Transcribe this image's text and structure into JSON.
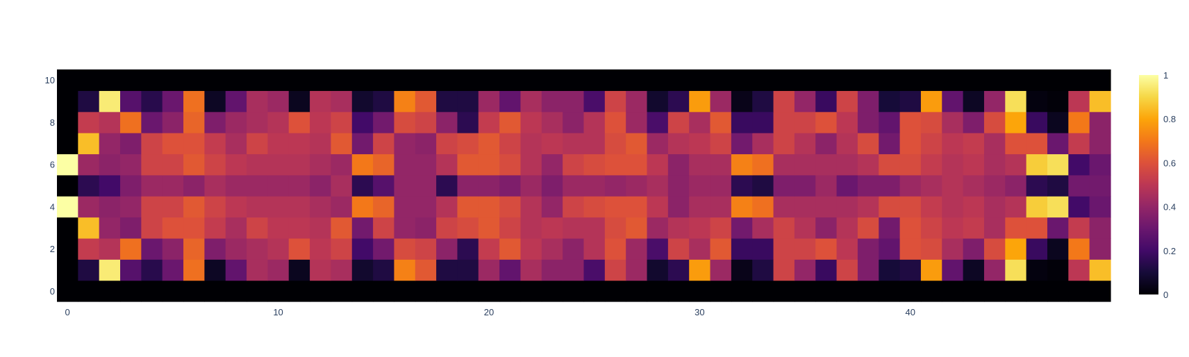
{
  "chart_data": {
    "type": "heatmap",
    "colorscale": "inferno",
    "x_range": [
      -0.5,
      49.5
    ],
    "y_range": [
      -0.5,
      10.5
    ],
    "x_ticks": [
      0,
      10,
      20,
      30,
      40
    ],
    "y_ticks": [
      0,
      2,
      4,
      6,
      8,
      10
    ],
    "colorbar": {
      "min": 0,
      "max": 1,
      "ticks": [
        0,
        0.2,
        0.4,
        0.6,
        0.8,
        1
      ]
    },
    "z": [
      [
        0,
        0,
        0,
        0,
        0,
        0,
        0,
        0,
        0,
        0,
        0,
        0,
        0,
        0,
        0,
        0,
        0,
        0,
        0,
        0,
        0,
        0,
        0,
        0,
        0,
        0,
        0,
        0,
        0,
        0,
        0,
        0,
        0,
        0,
        0,
        0,
        0,
        0,
        0,
        0,
        0,
        0,
        0,
        0,
        0,
        0,
        0,
        0,
        0,
        0
      ],
      [
        0,
        0.12,
        0.95,
        0.25,
        0.14,
        0.3,
        0.68,
        0.06,
        0.28,
        0.45,
        0.42,
        0.05,
        0.48,
        0.45,
        0.08,
        0.12,
        0.72,
        0.62,
        0.12,
        0.12,
        0.42,
        0.28,
        0.45,
        0.38,
        0.38,
        0.22,
        0.55,
        0.42,
        0.08,
        0.15,
        0.78,
        0.42,
        0.04,
        0.12,
        0.55,
        0.4,
        0.18,
        0.55,
        0.35,
        0.1,
        0.12,
        0.78,
        0.28,
        0.06,
        0.4,
        0.92,
        0.02,
        0.01,
        0.5,
        0.85
      ],
      [
        0,
        0.52,
        0.48,
        0.68,
        0.3,
        0.38,
        0.65,
        0.35,
        0.42,
        0.45,
        0.48,
        0.6,
        0.5,
        0.55,
        0.2,
        0.32,
        0.58,
        0.55,
        0.38,
        0.15,
        0.52,
        0.62,
        0.5,
        0.45,
        0.38,
        0.48,
        0.6,
        0.42,
        0.22,
        0.55,
        0.45,
        0.62,
        0.18,
        0.18,
        0.55,
        0.55,
        0.6,
        0.5,
        0.35,
        0.28,
        0.6,
        0.58,
        0.45,
        0.35,
        0.58,
        0.8,
        0.18,
        0.05,
        0.7,
        0.38
      ],
      [
        0,
        0.85,
        0.4,
        0.35,
        0.55,
        0.6,
        0.6,
        0.52,
        0.45,
        0.55,
        0.5,
        0.5,
        0.48,
        0.62,
        0.32,
        0.55,
        0.4,
        0.38,
        0.55,
        0.58,
        0.62,
        0.55,
        0.48,
        0.5,
        0.48,
        0.48,
        0.58,
        0.62,
        0.42,
        0.48,
        0.5,
        0.55,
        0.32,
        0.45,
        0.55,
        0.48,
        0.38,
        0.48,
        0.58,
        0.32,
        0.6,
        0.55,
        0.5,
        0.52,
        0.45,
        0.6,
        0.6,
        0.3,
        0.52,
        0.38
      ],
      [
        1,
        0.42,
        0.38,
        0.4,
        0.55,
        0.55,
        0.62,
        0.55,
        0.5,
        0.48,
        0.48,
        0.48,
        0.45,
        0.42,
        0.7,
        0.65,
        0.4,
        0.4,
        0.48,
        0.62,
        0.62,
        0.58,
        0.48,
        0.4,
        0.55,
        0.58,
        0.6,
        0.6,
        0.5,
        0.38,
        0.45,
        0.45,
        0.72,
        0.68,
        0.45,
        0.45,
        0.45,
        0.45,
        0.48,
        0.58,
        0.58,
        0.52,
        0.48,
        0.5,
        0.45,
        0.48,
        0.88,
        0.92,
        0.2,
        0.3
      ],
      [
        0,
        0.15,
        0.2,
        0.35,
        0.42,
        0.42,
        0.38,
        0.45,
        0.42,
        0.42,
        0.42,
        0.42,
        0.38,
        0.45,
        0.15,
        0.25,
        0.4,
        0.4,
        0.15,
        0.38,
        0.38,
        0.35,
        0.42,
        0.35,
        0.42,
        0.42,
        0.4,
        0.42,
        0.45,
        0.38,
        0.42,
        0.42,
        0.15,
        0.12,
        0.35,
        0.35,
        0.42,
        0.3,
        0.35,
        0.35,
        0.42,
        0.45,
        0.48,
        0.45,
        0.42,
        0.38,
        0.15,
        0.12,
        0.32,
        0.32
      ],
      [
        1,
        0.42,
        0.38,
        0.4,
        0.55,
        0.55,
        0.62,
        0.55,
        0.5,
        0.48,
        0.48,
        0.48,
        0.45,
        0.42,
        0.7,
        0.65,
        0.4,
        0.4,
        0.48,
        0.62,
        0.62,
        0.58,
        0.48,
        0.4,
        0.55,
        0.58,
        0.6,
        0.6,
        0.5,
        0.38,
        0.45,
        0.45,
        0.72,
        0.68,
        0.45,
        0.45,
        0.45,
        0.45,
        0.48,
        0.58,
        0.58,
        0.52,
        0.48,
        0.5,
        0.45,
        0.48,
        0.88,
        0.92,
        0.2,
        0.3
      ],
      [
        0,
        0.85,
        0.4,
        0.35,
        0.55,
        0.6,
        0.6,
        0.52,
        0.45,
        0.55,
        0.5,
        0.5,
        0.48,
        0.62,
        0.32,
        0.55,
        0.4,
        0.38,
        0.55,
        0.58,
        0.62,
        0.55,
        0.48,
        0.5,
        0.48,
        0.48,
        0.58,
        0.62,
        0.42,
        0.48,
        0.5,
        0.55,
        0.32,
        0.45,
        0.55,
        0.48,
        0.38,
        0.48,
        0.58,
        0.32,
        0.6,
        0.55,
        0.5,
        0.52,
        0.45,
        0.6,
        0.6,
        0.3,
        0.52,
        0.38
      ],
      [
        0,
        0.52,
        0.48,
        0.68,
        0.3,
        0.38,
        0.65,
        0.35,
        0.42,
        0.45,
        0.48,
        0.6,
        0.5,
        0.55,
        0.2,
        0.32,
        0.58,
        0.55,
        0.38,
        0.15,
        0.52,
        0.62,
        0.5,
        0.45,
        0.38,
        0.48,
        0.6,
        0.42,
        0.22,
        0.55,
        0.45,
        0.62,
        0.18,
        0.18,
        0.55,
        0.55,
        0.6,
        0.5,
        0.35,
        0.28,
        0.6,
        0.58,
        0.45,
        0.35,
        0.58,
        0.8,
        0.18,
        0.05,
        0.7,
        0.38
      ],
      [
        0,
        0.12,
        0.95,
        0.25,
        0.14,
        0.3,
        0.68,
        0.06,
        0.28,
        0.45,
        0.42,
        0.05,
        0.48,
        0.45,
        0.08,
        0.12,
        0.72,
        0.62,
        0.12,
        0.12,
        0.42,
        0.28,
        0.45,
        0.38,
        0.38,
        0.22,
        0.55,
        0.42,
        0.08,
        0.15,
        0.78,
        0.42,
        0.04,
        0.12,
        0.55,
        0.4,
        0.18,
        0.55,
        0.35,
        0.1,
        0.12,
        0.78,
        0.28,
        0.06,
        0.4,
        0.92,
        0.02,
        0.01,
        0.5,
        0.85
      ],
      [
        0,
        0,
        0,
        0,
        0,
        0,
        0,
        0,
        0,
        0,
        0,
        0,
        0,
        0,
        0,
        0,
        0,
        0,
        0,
        0,
        0,
        0,
        0,
        0,
        0,
        0,
        0,
        0,
        0,
        0,
        0,
        0,
        0,
        0,
        0,
        0,
        0,
        0,
        0,
        0,
        0,
        0,
        0,
        0,
        0,
        0,
        0,
        0,
        0,
        0
      ]
    ]
  }
}
